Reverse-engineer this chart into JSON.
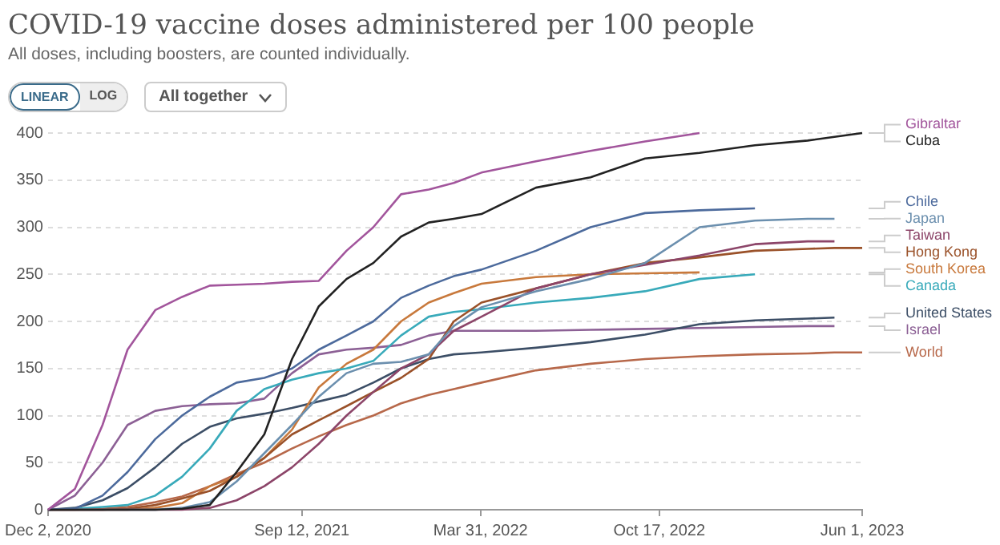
{
  "chart_data": {
    "type": "line",
    "title": "COVID-19 vaccine doses administered per 100 people",
    "subtitle": "All doses, including boosters, are counted individually.",
    "annotations": [
      "LINEAR",
      "LOG",
      "All together"
    ],
    "x": [
      "2020-12-02",
      "2021-01-01",
      "2021-02-01",
      "2021-03-01",
      "2021-04-01",
      "2021-05-01",
      "2021-06-01",
      "2021-07-01",
      "2021-08-01",
      "2021-09-01",
      "2021-10-01",
      "2021-11-01",
      "2021-12-01",
      "2022-01-01",
      "2022-02-01",
      "2022-03-01",
      "2022-04-01",
      "2022-06-01",
      "2022-08-01",
      "2022-10-01",
      "2022-12-01",
      "2023-02-01",
      "2023-04-01",
      "2023-05-01",
      "2023-06-01"
    ],
    "series": [
      {
        "name": "Gibraltar",
        "color": "#a2559c",
        "values": [
          0,
          22,
          90,
          170,
          212,
          226,
          238,
          239,
          240,
          242,
          243,
          275,
          300,
          335,
          340,
          347,
          358,
          370,
          381,
          391,
          400,
          null,
          null,
          null,
          null
        ]
      },
      {
        "name": "Cuba",
        "color": "#222222",
        "values": [
          0,
          0,
          0,
          0,
          0,
          1,
          5,
          40,
          80,
          160,
          216,
          245,
          262,
          290,
          305,
          309,
          314,
          342,
          353,
          373,
          379,
          387,
          392,
          396,
          400
        ]
      },
      {
        "name": "Chile",
        "color": "#4c6a9c",
        "values": [
          0,
          1,
          15,
          40,
          75,
          100,
          120,
          135,
          140,
          150,
          170,
          185,
          200,
          225,
          238,
          248,
          255,
          275,
          300,
          315,
          318,
          320,
          null,
          null,
          null
        ]
      },
      {
        "name": "Japan",
        "color": "#6b8fae",
        "values": [
          0,
          0,
          0,
          0,
          0,
          2,
          8,
          30,
          60,
          90,
          120,
          145,
          155,
          157,
          165,
          195,
          215,
          232,
          245,
          262,
          300,
          307,
          309,
          309,
          null
        ]
      },
      {
        "name": "Taiwan",
        "color": "#8c4569",
        "values": [
          0,
          0,
          0,
          0,
          0,
          0,
          2,
          10,
          25,
          45,
          70,
          100,
          125,
          150,
          165,
          190,
          205,
          235,
          250,
          260,
          270,
          282,
          285,
          285,
          null
        ]
      },
      {
        "name": "Hong Kong",
        "color": "#9a5129",
        "values": [
          0,
          0,
          0,
          1,
          5,
          12,
          20,
          35,
          55,
          80,
          95,
          110,
          125,
          140,
          160,
          200,
          220,
          235,
          250,
          262,
          268,
          275,
          277,
          278,
          278
        ]
      },
      {
        "name": "Canada",
        "color": "#38aaba",
        "values": [
          0,
          1,
          3,
          5,
          15,
          35,
          65,
          105,
          128,
          138,
          145,
          150,
          158,
          185,
          205,
          210,
          213,
          220,
          225,
          232,
          245,
          250,
          null,
          null,
          null
        ]
      },
      {
        "name": "South Korea",
        "color": "#c8793c",
        "values": [
          0,
          0,
          0,
          0,
          2,
          7,
          25,
          35,
          55,
          85,
          130,
          155,
          170,
          200,
          220,
          230,
          240,
          247,
          250,
          251,
          252,
          null,
          null,
          null,
          null
        ]
      },
      {
        "name": "United States",
        "color": "#3c4e66",
        "values": [
          0,
          2,
          10,
          23,
          45,
          70,
          88,
          97,
          102,
          108,
          115,
          122,
          135,
          150,
          160,
          165,
          167,
          172,
          178,
          186,
          197,
          201,
          203,
          204,
          null
        ]
      },
      {
        "name": "Israel",
        "color": "#8c6095",
        "values": [
          0,
          15,
          50,
          90,
          105,
          110,
          112,
          113,
          118,
          145,
          165,
          170,
          172,
          175,
          185,
          190,
          190,
          190,
          191,
          192,
          193,
          194,
          195,
          195,
          null
        ]
      },
      {
        "name": "World",
        "color": "#b7684a",
        "values": [
          0,
          0,
          1,
          3,
          8,
          14,
          25,
          38,
          50,
          65,
          78,
          90,
          100,
          113,
          122,
          128,
          135,
          148,
          155,
          160,
          163,
          165,
          166,
          167,
          167
        ]
      }
    ],
    "xlim": [
      "2020-12-02",
      "2023-06-01"
    ],
    "xticks": [
      {
        "value": "2020-12-02",
        "label": "Dec 2, 2020"
      },
      {
        "value": "2021-09-12",
        "label": "Sep 12, 2021"
      },
      {
        "value": "2022-03-31",
        "label": "Mar 31, 2022"
      },
      {
        "value": "2022-10-17",
        "label": "Oct 17, 2022"
      },
      {
        "value": "2023-06-01",
        "label": "Jun 1, 2023"
      }
    ],
    "ylim": [
      0,
      400
    ],
    "yticks": [
      0,
      50,
      100,
      150,
      200,
      250,
      300,
      350,
      400
    ],
    "grid": "y",
    "legend": "right",
    "marker": "none",
    "line_style": "solid"
  }
}
